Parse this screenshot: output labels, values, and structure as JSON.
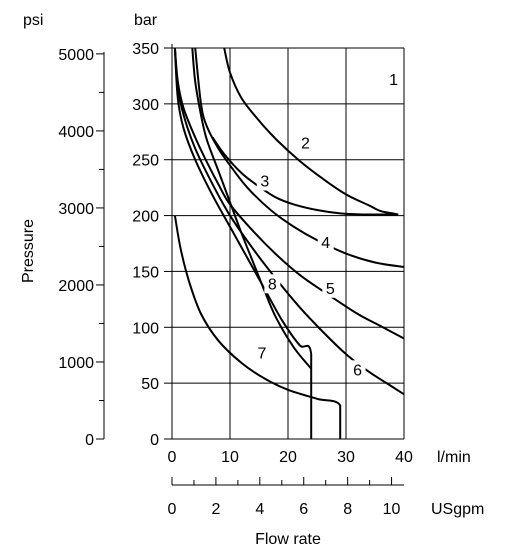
{
  "chart_data": {
    "type": "line",
    "xlabel": "Flow rate",
    "ylabel": "Pressure",
    "x_unit": "l/min",
    "x_secondary_unit": "USgpm",
    "y_unit": "bar",
    "y_secondary_unit": "psi",
    "xlim": [
      0,
      40
    ],
    "ylim": [
      0,
      350
    ],
    "x_ticks": [
      0,
      10,
      20,
      30,
      40
    ],
    "y_ticks": [
      0,
      50,
      100,
      150,
      200,
      250,
      300,
      350
    ],
    "x_secondary_ticks": [
      0,
      2,
      4,
      6,
      8,
      10
    ],
    "y_secondary_ticks": [
      0,
      1000,
      2000,
      3000,
      4000,
      5000
    ],
    "grid": true,
    "series": [
      {
        "name": "1",
        "points": [
          [
            9,
            350
          ],
          [
            10,
            328
          ],
          [
            12,
            305
          ],
          [
            15,
            285
          ],
          [
            18,
            268
          ],
          [
            22,
            249
          ],
          [
            26,
            233
          ],
          [
            30,
            219
          ],
          [
            34,
            209
          ],
          [
            36,
            204
          ],
          [
            38,
            202
          ],
          [
            39,
            201
          ]
        ],
        "label_at": [
          38.2,
          317
        ]
      },
      {
        "name": "2",
        "points": [
          [
            7,
            270
          ],
          [
            9,
            255
          ],
          [
            12,
            238
          ],
          [
            15,
            226
          ],
          [
            18,
            216
          ],
          [
            21,
            210
          ],
          [
            25,
            205
          ],
          [
            29,
            202
          ],
          [
            33,
            201
          ],
          [
            37,
            201
          ],
          [
            39,
            201
          ]
        ],
        "label_at": [
          23,
          260
        ]
      },
      {
        "name": "3",
        "points": [
          [
            4,
            350
          ],
          [
            5,
            300
          ],
          [
            6,
            280
          ],
          [
            8,
            260
          ],
          [
            10,
            245
          ],
          [
            13,
            225
          ],
          [
            17,
            205
          ],
          [
            21,
            190
          ],
          [
            25,
            178
          ],
          [
            30,
            166
          ],
          [
            35,
            158
          ],
          [
            40,
            154
          ]
        ],
        "label_at": [
          16,
          226
        ]
      },
      {
        "name": "4",
        "points": [
          [
            0.5,
            350
          ],
          [
            1,
            320
          ],
          [
            2,
            296
          ],
          [
            4,
            270
          ],
          [
            6,
            248
          ],
          [
            8,
            228
          ],
          [
            10,
            210
          ],
          [
            14,
            186
          ],
          [
            18,
            165
          ],
          [
            22,
            147
          ],
          [
            27,
            129
          ],
          [
            32,
            112
          ],
          [
            36,
            101
          ],
          [
            40,
            90
          ]
        ],
        "label_at": [
          26.5,
          171
        ]
      },
      {
        "name": "5",
        "points": [
          [
            0.5,
            350
          ],
          [
            1,
            315
          ],
          [
            2,
            290
          ],
          [
            4,
            260
          ],
          [
            7,
            228
          ],
          [
            10,
            200
          ],
          [
            14,
            170
          ],
          [
            18,
            143
          ],
          [
            22,
            118
          ],
          [
            26,
            96
          ],
          [
            30,
            76
          ],
          [
            34,
            60
          ],
          [
            37,
            50
          ],
          [
            40,
            40
          ]
        ],
        "label_at": [
          27.3,
          130
        ]
      },
      {
        "name": "6",
        "points": [
          [
            0.5,
            350
          ],
          [
            1,
            305
          ],
          [
            2,
            278
          ],
          [
            4,
            250
          ],
          [
            7,
            218
          ],
          [
            10,
            190
          ],
          [
            13,
            162
          ],
          [
            16,
            134
          ],
          [
            19,
            106
          ],
          [
            22,
            84
          ],
          [
            24,
            76
          ],
          [
            24,
            0
          ]
        ],
        "label_at": [
          32,
          57
        ]
      },
      {
        "name": "7",
        "points": [
          [
            0.5,
            200
          ],
          [
            1.5,
            170
          ],
          [
            3,
            140
          ],
          [
            5,
            112
          ],
          [
            8,
            88
          ],
          [
            12,
            68
          ],
          [
            16,
            54
          ],
          [
            20,
            44
          ],
          [
            25,
            36
          ],
          [
            29,
            30
          ],
          [
            29,
            0
          ]
        ],
        "label_at": [
          15.5,
          72
        ]
      },
      {
        "name": "8",
        "points": [
          [
            3.5,
            350
          ],
          [
            4,
            320
          ],
          [
            5,
            290
          ],
          [
            6,
            268
          ],
          [
            8,
            240
          ],
          [
            10,
            212
          ],
          [
            12,
            184
          ],
          [
            14,
            158
          ],
          [
            16,
            132
          ],
          [
            18,
            108
          ],
          [
            21,
            82
          ],
          [
            24,
            63
          ]
        ],
        "label_at": [
          17.3,
          134
        ]
      }
    ]
  }
}
